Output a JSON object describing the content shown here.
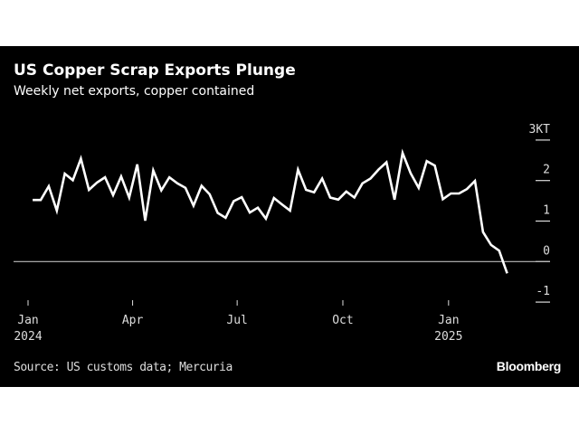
{
  "chart_data": {
    "type": "line",
    "title": "US Copper Scrap Exports Plunge",
    "subtitle": "Weekly net exports, copper contained",
    "source": "Source: US customs data; Mercuria",
    "brand": "Bloomberg",
    "x": [
      "2024-01-05",
      "2024-01-12",
      "2024-01-19",
      "2024-01-26",
      "2024-02-02",
      "2024-02-09",
      "2024-02-16",
      "2024-02-23",
      "2024-03-01",
      "2024-03-08",
      "2024-03-15",
      "2024-03-22",
      "2024-03-29",
      "2024-04-05",
      "2024-04-12",
      "2024-04-19",
      "2024-04-26",
      "2024-05-03",
      "2024-05-10",
      "2024-05-17",
      "2024-05-24",
      "2024-05-31",
      "2024-06-07",
      "2024-06-14",
      "2024-06-21",
      "2024-06-28",
      "2024-07-05",
      "2024-07-12",
      "2024-07-19",
      "2024-07-26",
      "2024-08-02",
      "2024-08-09",
      "2024-08-16",
      "2024-08-23",
      "2024-08-30",
      "2024-09-06",
      "2024-09-13",
      "2024-09-20",
      "2024-09-27",
      "2024-10-04",
      "2024-10-11",
      "2024-10-18",
      "2024-10-25",
      "2024-11-01",
      "2024-11-08",
      "2024-11-15",
      "2024-11-22",
      "2024-11-29",
      "2024-12-06",
      "2024-12-13",
      "2024-12-20",
      "2024-12-27",
      "2025-01-03",
      "2025-01-10",
      "2025-01-17",
      "2025-01-24",
      "2025-01-31",
      "2025-02-07",
      "2025-02-14",
      "2025-02-21"
    ],
    "values": [
      1.52,
      1.52,
      1.86,
      1.26,
      2.17,
      2.01,
      2.54,
      1.77,
      1.95,
      2.08,
      1.64,
      2.1,
      1.58,
      2.4,
      1.01,
      2.25,
      1.76,
      2.08,
      1.93,
      1.82,
      1.38,
      1.87,
      1.66,
      1.2,
      1.08,
      1.49,
      1.59,
      1.21,
      1.33,
      1.06,
      1.57,
      1.41,
      1.26,
      2.27,
      1.77,
      1.71,
      2.05,
      1.58,
      1.53,
      1.73,
      1.58,
      1.93,
      2.05,
      2.27,
      2.45,
      1.53,
      2.68,
      2.18,
      1.82,
      2.48,
      2.37,
      1.54,
      1.68,
      1.68,
      1.79,
      1.99,
      0.73,
      0.41,
      0.27,
      -0.29
    ],
    "ylim": [
      -1,
      3
    ],
    "y_unit": "KT",
    "y_ticks": [
      {
        "value": 3,
        "label": "3KT"
      },
      {
        "value": 2,
        "label": "2"
      },
      {
        "value": 1,
        "label": "1"
      },
      {
        "value": 0,
        "label": "0"
      },
      {
        "value": -1,
        "label": "-1"
      }
    ],
    "x_ticks": [
      {
        "date": "2024-01-01",
        "label": "Jan",
        "sublabel": "2024"
      },
      {
        "date": "2024-04-01",
        "label": "Apr",
        "sublabel": ""
      },
      {
        "date": "2024-07-01",
        "label": "Jul",
        "sublabel": ""
      },
      {
        "date": "2024-10-01",
        "label": "Oct",
        "sublabel": ""
      },
      {
        "date": "2025-01-01",
        "label": "Jan",
        "sublabel": "2025"
      }
    ],
    "y_axis_position": "right",
    "grid": false,
    "zero_line": true,
    "colors": {
      "background": "#000000",
      "line": "#ffffff",
      "text": "#dddddd"
    }
  }
}
